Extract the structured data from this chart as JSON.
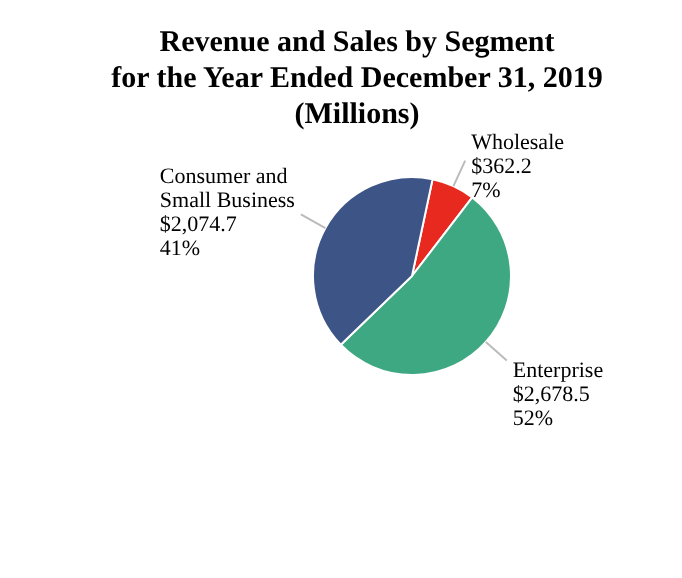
{
  "chart_data": {
    "type": "pie",
    "title": "Revenue and Sales by Segment\nfor the Year Ended December 31, 2019\n(Millions)",
    "categories": [
      "Wholesale",
      "Enterprise",
      "Consumer and\nSmall Business"
    ],
    "values": [
      362.2,
      2678.5,
      2074.7
    ],
    "colors": [
      "#e8291f",
      "#3ea882",
      "#3d5487"
    ],
    "value_labels": [
      "$362.2\n7%",
      "$2,678.5\n52%",
      "$2,074.7\n41%"
    ],
    "legend": false
  }
}
